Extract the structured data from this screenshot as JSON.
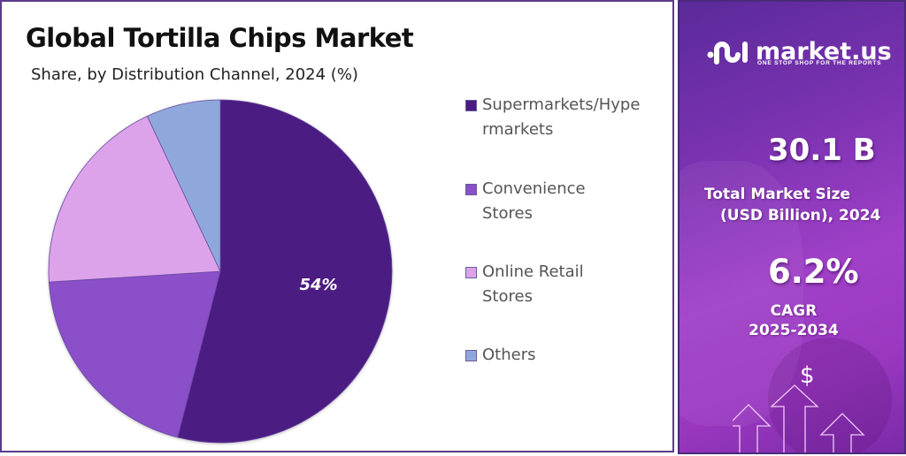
{
  "header": {
    "title": "Global Tortilla Chips Market",
    "subtitle": "Share, by Distribution Channel, 2024 (%)"
  },
  "chart_data": {
    "type": "pie",
    "title": "Global Tortilla Chips Market",
    "subtitle": "Share, by Distribution Channel, 2024 (%)",
    "categories": [
      "Supermarkets/Hypermarkets",
      "Convenience Stores",
      "Online Retail Stores",
      "Others"
    ],
    "values": [
      54,
      20,
      19,
      7
    ],
    "colors": [
      "#4b1a82",
      "#8a4fc9",
      "#dda3ea",
      "#8fa8dc"
    ],
    "data_labels": [
      "54%",
      "",
      "",
      ""
    ],
    "start_angle_deg": 0,
    "direction": "clockwise",
    "legend_position": "right"
  },
  "legend": {
    "items": [
      {
        "label": "Supermarkets/Hypermarkets",
        "color": "#4b1a82"
      },
      {
        "label": "Convenience Stores",
        "color": "#8a4fc9"
      },
      {
        "label": "Online Retail Stores",
        "color": "#dda3ea"
      },
      {
        "label": "Others",
        "color": "#8fa8dc"
      }
    ]
  },
  "pie": {
    "label": "54%"
  },
  "sidebar": {
    "brand": "market.us",
    "tagline": "ONE STOP SHOP FOR THE REPORTS",
    "market_size_value": "30.1 B",
    "market_size_label_1": "Total Market Size",
    "market_size_label_2": "(USD Billion), 2024",
    "cagr_value": "6.2%",
    "cagr_label_1": "CAGR",
    "cagr_label_2": "2025-2034",
    "dollar_icon": "$"
  }
}
